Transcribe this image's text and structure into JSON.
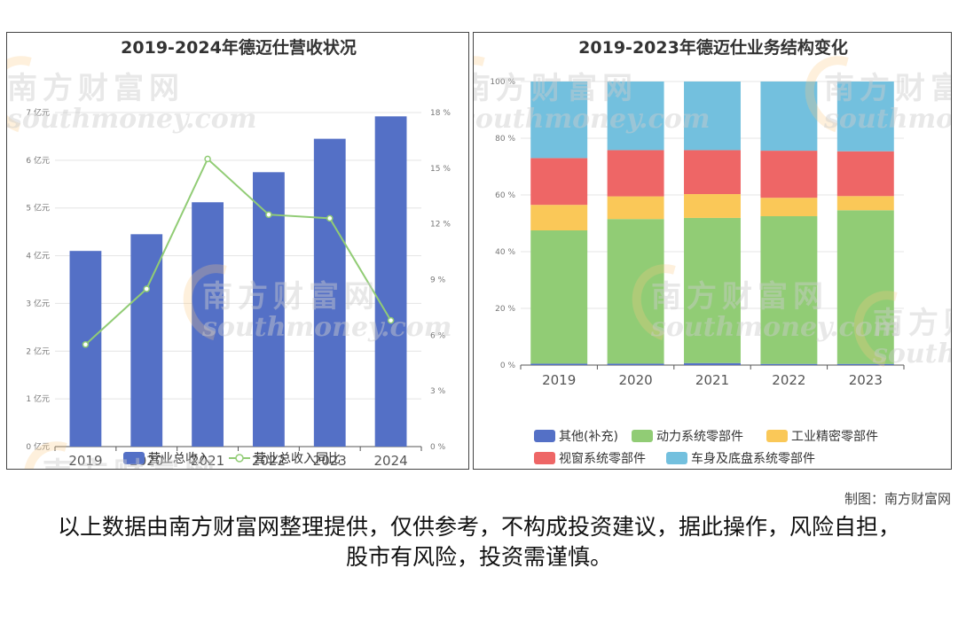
{
  "chart_data": [
    {
      "type": "bar",
      "title": "2019-2024年德迈仕营收状况",
      "categories": [
        "2019",
        "2020",
        "2021",
        "2022",
        "2023",
        "2024"
      ],
      "series": [
        {
          "name": "营业总收入",
          "type": "bar",
          "axis": "left",
          "values": [
            4.1,
            4.45,
            5.12,
            5.75,
            6.45,
            6.92
          ],
          "color": "#5470c6"
        },
        {
          "name": "营业总收入同比",
          "type": "line",
          "axis": "right",
          "values": [
            5.5,
            8.5,
            15.5,
            12.5,
            12.3,
            6.8
          ],
          "color": "#91cc75"
        }
      ],
      "y_left": {
        "ylim": [
          0,
          7
        ],
        "ticks": [
          "0 亿元",
          "1 亿元",
          "2 亿元",
          "3 亿元",
          "4 亿元",
          "5 亿元",
          "6 亿元",
          "7 亿元"
        ]
      },
      "y_right": {
        "ylim": [
          0,
          18
        ],
        "ticks": [
          "0 %",
          "3 %",
          "6 %",
          "9 %",
          "12 %",
          "15 %",
          "18 %"
        ]
      },
      "grid": true,
      "legend": "bottom"
    },
    {
      "type": "bar",
      "stacked": true,
      "title": "2019-2023年德迈仕业务结构变化",
      "categories": [
        "2019",
        "2020",
        "2021",
        "2022",
        "2023"
      ],
      "series": [
        {
          "name": "其他(补充)",
          "values": [
            0.5,
            0.5,
            0.7,
            0.4,
            0.4
          ],
          "color": "#5470c6"
        },
        {
          "name": "动力系统零部件",
          "values": [
            47,
            51,
            51.2,
            52.1,
            54.2
          ],
          "color": "#91cc75"
        },
        {
          "name": "工业精密零部件",
          "values": [
            9,
            8,
            8.4,
            6.5,
            5
          ],
          "color": "#fac858"
        },
        {
          "name": "视窗系统零部件",
          "values": [
            16.5,
            16.3,
            15.5,
            16.6,
            15.8
          ],
          "color": "#ee6666"
        },
        {
          "name": "车身及底盘系统零部件",
          "values": [
            27,
            24.2,
            24.2,
            24.4,
            24.6
          ],
          "color": "#73c0de"
        }
      ],
      "y": {
        "ylim": [
          0,
          100
        ],
        "ticks": [
          "0 %",
          "20 %",
          "40 %",
          "60 %",
          "80 %",
          "100 %"
        ]
      },
      "grid": true,
      "legend": "bottom"
    }
  ],
  "watermark": {
    "cn": "南方财富网",
    "en": "southmoney.com"
  },
  "credit": "制图：南方财富网",
  "disclaimer": "以上数据由南方财富网整理提供，仅供参考，不构成投资建议，据此操作，风险自担，股市有风险，投资需谨慎。"
}
